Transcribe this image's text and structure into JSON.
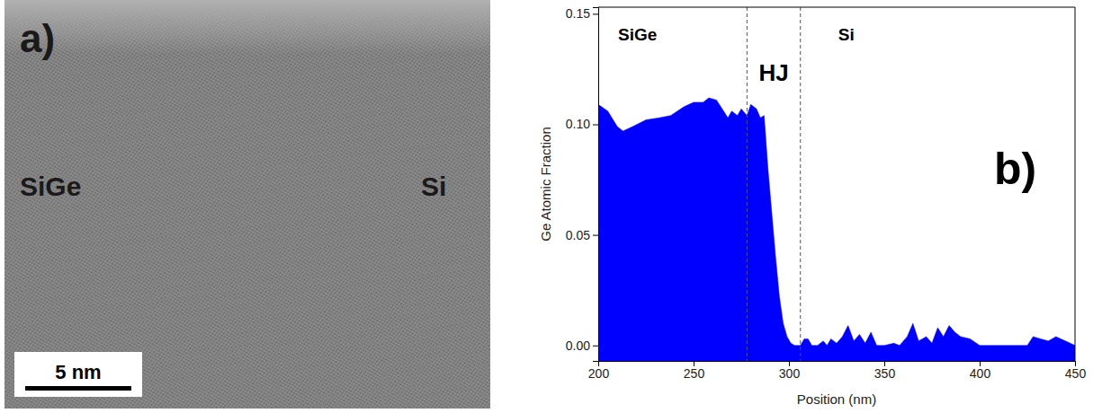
{
  "chart_data": [
    {
      "type": "image",
      "panel": "a)",
      "annotations": [
        "SiGe",
        "Si"
      ],
      "scale_bar": "5 nm"
    },
    {
      "type": "area",
      "panel": "b)",
      "x_label": "Position (nm)",
      "y_label": "Ge Atomic Fraction",
      "x": [
        200,
        205,
        210,
        213,
        218,
        225,
        232,
        238,
        245,
        250,
        255,
        258,
        262,
        265,
        268,
        270,
        273,
        275,
        278,
        280,
        283,
        285,
        287,
        289,
        291,
        293,
        295,
        297,
        299,
        301,
        303,
        306,
        308,
        310,
        312,
        315,
        318,
        320,
        322,
        325,
        328,
        331,
        334,
        337,
        340,
        343,
        346,
        350,
        355,
        358,
        362,
        365,
        368,
        372,
        375,
        378,
        381,
        384,
        387,
        390,
        395,
        400,
        410,
        420,
        425,
        428,
        432,
        436,
        440,
        445,
        450
      ],
      "values": [
        0.109,
        0.106,
        0.099,
        0.097,
        0.099,
        0.102,
        0.103,
        0.104,
        0.108,
        0.11,
        0.11,
        0.112,
        0.111,
        0.107,
        0.103,
        0.106,
        0.104,
        0.107,
        0.104,
        0.109,
        0.107,
        0.103,
        0.104,
        0.08,
        0.06,
        0.04,
        0.022,
        0.01,
        0.004,
        0.001,
        0.0,
        0.0,
        0.003,
        0.003,
        0.0,
        0.0,
        0.002,
        0.0,
        0.003,
        0.001,
        0.004,
        0.009,
        0.002,
        0.005,
        0.001,
        0.006,
        0.0,
        0.0,
        0.001,
        0.0,
        0.004,
        0.01,
        0.002,
        0.004,
        0.001,
        0.008,
        0.004,
        0.009,
        0.006,
        0.004,
        0.003,
        0.0,
        0.0,
        0.0,
        0.0,
        0.004,
        0.003,
        0.002,
        0.004,
        0.002,
        0.0
      ],
      "color": "#0000ff",
      "xlim": [
        200,
        450
      ],
      "xticks": [
        200,
        250,
        300,
        350,
        400,
        450
      ],
      "ylim": [
        -0.007,
        0.153
      ],
      "yticks": [
        {
          "value": 0,
          "label": "0.00"
        },
        {
          "value": 0.05,
          "label": "0.05"
        },
        {
          "value": 0.1,
          "label": "0.10"
        },
        {
          "value": 0.15,
          "label": "0.15"
        }
      ],
      "vlines": [
        278,
        306
      ],
      "regions": [
        "SiGe",
        "HJ",
        "Si"
      ],
      "grid": false
    }
  ]
}
